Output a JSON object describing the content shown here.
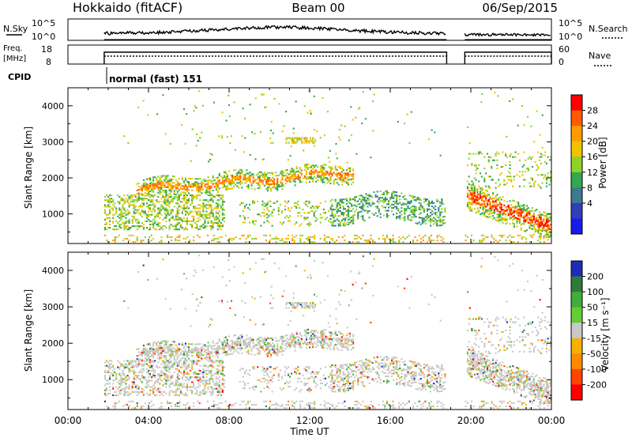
{
  "header": {
    "station": "Hokkaido (fitACF)",
    "beam": "Beam 00",
    "date": "06/Sep/2015"
  },
  "top_panels": {
    "nsky_label": "N.Sky",
    "nsearch_label": "N.Search",
    "noise_ticks": [
      "10^5",
      "10^0"
    ],
    "freq_label_line1": "Freq.",
    "freq_label_line2": "[MHz]",
    "freq_ticks": [
      "18",
      "8"
    ],
    "nave_label": "Nave",
    "nave_ticks": [
      "60",
      "0"
    ],
    "cpid_label": "CPID",
    "cpid_mode": "normal (fast) 151"
  },
  "power_colorbar": {
    "title": "Power [dB]",
    "ticks": [
      "28",
      "24",
      "20",
      "16",
      "12",
      "8",
      "4"
    ],
    "colors": [
      "#ff0000",
      "#ff5a00",
      "#ff9a00",
      "#f2c200",
      "#8fd32a",
      "#33a84c",
      "#3c7a92",
      "#2e40b7",
      "#1a1aee"
    ]
  },
  "velocity_colorbar": {
    "title": "Velocity [m s⁻¹]",
    "ticks": [
      "200",
      "100",
      "50",
      "15",
      "-15",
      "-50",
      "-100",
      "-200"
    ],
    "colors": [
      "#1f2bb5",
      "#2f7a3a",
      "#3fae3a",
      "#66cc33",
      "#c8c8c8",
      "#f5b000",
      "#ff8a00",
      "#ff4500",
      "#ff0000"
    ]
  },
  "chart_data": [
    {
      "type": "heatmap",
      "name": "power",
      "ylabel": "Slant Range [km]",
      "xlabel": "",
      "x_ticks": [
        "00:00",
        "04:00",
        "08:00",
        "12:00",
        "16:00",
        "20:00",
        "00:00"
      ],
      "y_ticks": [
        1000,
        2000,
        3000,
        4000
      ],
      "xlim_hours": [
        0,
        24
      ],
      "ylim_km": [
        180,
        4500
      ],
      "data_gap_hours": [
        18.8,
        19.7
      ],
      "echo_bands": [
        {
          "t0": 1.8,
          "t1": 7.5,
          "r0": 550,
          "r1": 1500,
          "level": "green"
        },
        {
          "t0": 3.5,
          "t1": 14.0,
          "r0": 1550,
          "r1": 2300,
          "level": "orange"
        },
        {
          "t0": 13.0,
          "t1": 18.7,
          "r0": 700,
          "r1": 1600,
          "level": "blue"
        },
        {
          "t0": 19.8,
          "t1": 23.8,
          "r0": 500,
          "r1": 1500,
          "level": "red"
        }
      ]
    },
    {
      "type": "heatmap",
      "name": "velocity",
      "ylabel": "Slant Range [km]",
      "xlabel": "Time UT",
      "x_ticks": [
        "00:00",
        "04:00",
        "08:00",
        "12:00",
        "16:00",
        "20:00",
        "00:00"
      ],
      "y_ticks": [
        1000,
        2000,
        3000,
        4000
      ],
      "xlim_hours": [
        0,
        24
      ],
      "ylim_km": [
        180,
        4500
      ],
      "data_gap_hours": [
        18.8,
        19.7
      ]
    }
  ]
}
